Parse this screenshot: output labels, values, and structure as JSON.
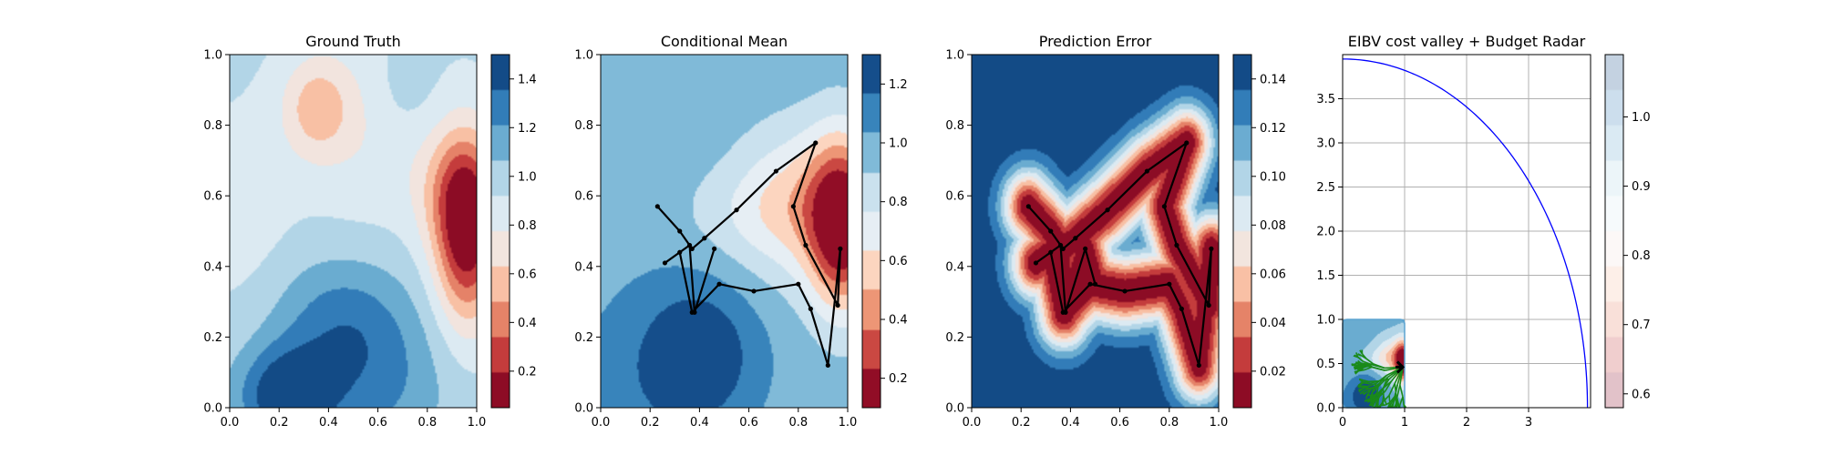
{
  "chart_data": [
    {
      "type": "heatmap",
      "title": "Ground Truth",
      "xlim": [
        0,
        1
      ],
      "ylim": [
        0,
        1
      ],
      "xticks": [
        "0.0",
        "0.2",
        "0.4",
        "0.6",
        "0.8",
        "1.0"
      ],
      "yticks": [
        "0.0",
        "0.2",
        "0.4",
        "0.6",
        "0.8",
        "1.0"
      ],
      "colormap": "RdBu",
      "colorbar": {
        "min": 0.05,
        "max": 1.5,
        "ticks": [
          "0.2",
          "0.4",
          "0.6",
          "0.8",
          "1.0",
          "1.2",
          "1.4"
        ]
      },
      "field": {
        "base": 0.95,
        "blobs": [
          {
            "x": 0.96,
            "y": 0.5,
            "sx": 0.09,
            "sy": 0.18,
            "a": -0.9
          },
          {
            "x": 0.9,
            "y": 0.62,
            "sx": 0.12,
            "sy": 0.12,
            "a": -0.25
          },
          {
            "x": 0.23,
            "y": 0.03,
            "sx": 0.14,
            "sy": 0.1,
            "a": 0.55
          },
          {
            "x": 0.45,
            "y": 0.25,
            "sx": 0.2,
            "sy": 0.13,
            "a": 0.3
          },
          {
            "x": 0.6,
            "y": 0.05,
            "sx": 0.2,
            "sy": 0.15,
            "a": 0.25
          },
          {
            "x": 0.35,
            "y": 0.85,
            "sx": 0.1,
            "sy": 0.1,
            "a": -0.35
          },
          {
            "x": 0.55,
            "y": 0.8,
            "sx": 0.18,
            "sy": 0.2,
            "a": -0.15
          },
          {
            "x": 0.05,
            "y": 0.55,
            "sx": 0.15,
            "sy": 0.2,
            "a": -0.1
          },
          {
            "x": 0.7,
            "y": 0.9,
            "sx": 0.1,
            "sy": 0.1,
            "a": 0.1
          }
        ]
      }
    },
    {
      "type": "heatmap",
      "title": "Conditional Mean",
      "xlim": [
        0,
        1
      ],
      "ylim": [
        0,
        1
      ],
      "xticks": [
        "0.0",
        "0.2",
        "0.4",
        "0.6",
        "0.8",
        "1.0"
      ],
      "yticks": [
        "0.0",
        "0.2",
        "0.4",
        "0.6",
        "0.8",
        "1.0"
      ],
      "colormap": "RdBu",
      "colorbar": {
        "min": 0.1,
        "max": 1.3,
        "ticks": [
          "0.2",
          "0.4",
          "0.6",
          "0.8",
          "1.0",
          "1.2"
        ]
      },
      "field": {
        "base": 0.98,
        "blobs": [
          {
            "x": 0.98,
            "y": 0.52,
            "sx": 0.1,
            "sy": 0.17,
            "a": -0.9
          },
          {
            "x": 0.78,
            "y": 0.58,
            "sx": 0.16,
            "sy": 0.15,
            "a": -0.35
          },
          {
            "x": 0.55,
            "y": 0.55,
            "sx": 0.18,
            "sy": 0.1,
            "a": -0.12
          },
          {
            "x": 0.4,
            "y": 0.15,
            "sx": 0.16,
            "sy": 0.14,
            "a": 0.32
          },
          {
            "x": 0.15,
            "y": 0.05,
            "sx": 0.2,
            "sy": 0.2,
            "a": 0.1
          }
        ]
      },
      "path": {
        "x": [
          0.23,
          0.32,
          0.37,
          0.42,
          0.55,
          0.71,
          0.87,
          0.78,
          0.83,
          0.96,
          0.97,
          0.92,
          0.85,
          0.8,
          0.62,
          0.48,
          0.37,
          0.32,
          0.26,
          0.36,
          0.38,
          0.46
        ],
        "y": [
          0.57,
          0.5,
          0.45,
          0.48,
          0.56,
          0.67,
          0.75,
          0.57,
          0.46,
          0.29,
          0.45,
          0.12,
          0.28,
          0.35,
          0.33,
          0.35,
          0.27,
          0.44,
          0.41,
          0.46,
          0.27,
          0.45
        ]
      }
    },
    {
      "type": "heatmap",
      "title": "Prediction Error",
      "xlim": [
        0,
        1
      ],
      "ylim": [
        0,
        1
      ],
      "xticks": [
        "0.0",
        "0.2",
        "0.4",
        "0.6",
        "0.8",
        "1.0"
      ],
      "yticks": [
        "0.0",
        "0.2",
        "0.4",
        "0.6",
        "0.8",
        "1.0"
      ],
      "colormap": "RdBu",
      "colorbar": {
        "min": 0.005,
        "max": 0.15,
        "ticks": [
          "0.02",
          "0.04",
          "0.06",
          "0.08",
          "0.10",
          "0.12",
          "0.14"
        ]
      },
      "field": {
        "base": 0.145,
        "dip_sigma": 0.07,
        "dip_depth": 0.14
      },
      "path": {
        "x": [
          0.23,
          0.32,
          0.37,
          0.42,
          0.55,
          0.71,
          0.87,
          0.78,
          0.83,
          0.96,
          0.97,
          0.92,
          0.85,
          0.8,
          0.62,
          0.48,
          0.37,
          0.32,
          0.26,
          0.36,
          0.38,
          0.46,
          0.5
        ],
        "y": [
          0.57,
          0.5,
          0.45,
          0.48,
          0.56,
          0.67,
          0.75,
          0.57,
          0.46,
          0.29,
          0.45,
          0.12,
          0.28,
          0.35,
          0.33,
          0.35,
          0.27,
          0.44,
          0.41,
          0.46,
          0.27,
          0.45,
          0.35
        ]
      }
    },
    {
      "type": "line",
      "title": "EIBV cost valley + Budget Radar",
      "xlim": [
        0,
        4
      ],
      "ylim": [
        0,
        4
      ],
      "xticks": [
        "0",
        "1",
        "2",
        "3"
      ],
      "yticks": [
        "0.0",
        "0.5",
        "1.0",
        "1.5",
        "2.0",
        "2.5",
        "3.0",
        "3.5"
      ],
      "grid": true,
      "series": [
        {
          "type": "arc",
          "color": "#0000ff",
          "center": [
            0,
            0
          ],
          "radius": 3.95,
          "angle_deg": [
            0,
            90
          ]
        }
      ],
      "inset": {
        "xlim": [
          0,
          1
        ],
        "ylim": [
          0,
          1
        ],
        "marker": [
          0.97,
          0.46
        ]
      },
      "colormap": "RdBu",
      "colorbar": {
        "min": 0.58,
        "max": 1.09,
        "ticks": [
          "0.6",
          "0.7",
          "0.8",
          "0.9",
          "1.0"
        ]
      }
    }
  ]
}
